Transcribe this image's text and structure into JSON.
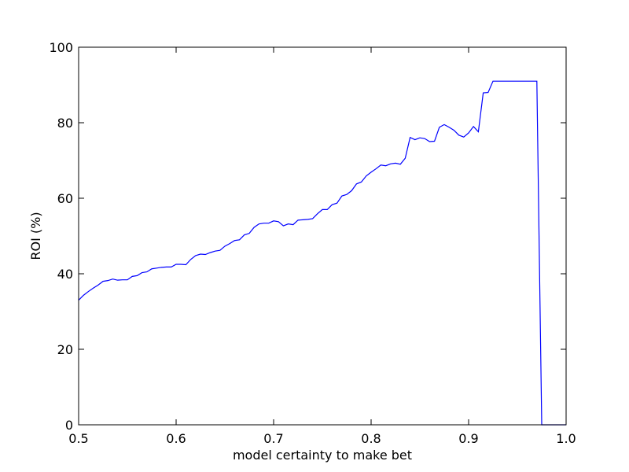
{
  "chart_data": {
    "type": "line",
    "title": "",
    "xlabel": "model certainty to make bet",
    "ylabel": "ROI (%)",
    "xlim": [
      0.5,
      1.0
    ],
    "ylim": [
      0,
      100
    ],
    "xticks": [
      0.5,
      0.6,
      0.7,
      0.8,
      0.9,
      1.0
    ],
    "xtick_labels": [
      "0.5",
      "0.6",
      "0.7",
      "0.8",
      "0.9",
      "1.0"
    ],
    "yticks": [
      0,
      20,
      40,
      60,
      80,
      100
    ],
    "ytick_labels": [
      "0",
      "20",
      "40",
      "60",
      "80",
      "100"
    ],
    "grid": false,
    "legend": "none",
    "series": [
      {
        "color": "#0000ff",
        "x": [
          0.5,
          0.505,
          0.51,
          0.515,
          0.52,
          0.525,
          0.53,
          0.535,
          0.54,
          0.545,
          0.55,
          0.555,
          0.56,
          0.565,
          0.57,
          0.575,
          0.58,
          0.585,
          0.59,
          0.595,
          0.6,
          0.605,
          0.61,
          0.615,
          0.62,
          0.625,
          0.63,
          0.635,
          0.64,
          0.645,
          0.65,
          0.655,
          0.66,
          0.665,
          0.67,
          0.675,
          0.68,
          0.685,
          0.69,
          0.695,
          0.7,
          0.705,
          0.71,
          0.715,
          0.72,
          0.725,
          0.73,
          0.735,
          0.74,
          0.745,
          0.75,
          0.755,
          0.76,
          0.765,
          0.77,
          0.775,
          0.78,
          0.785,
          0.79,
          0.795,
          0.8,
          0.805,
          0.81,
          0.815,
          0.82,
          0.825,
          0.83,
          0.835,
          0.84,
          0.845,
          0.85,
          0.855,
          0.86,
          0.865,
          0.87,
          0.875,
          0.88,
          0.885,
          0.89,
          0.895,
          0.9,
          0.905,
          0.91,
          0.915,
          0.92,
          0.925,
          0.93,
          0.935,
          0.94,
          0.97,
          0.975,
          1.0
        ],
        "y": [
          33.0,
          34.3,
          35.3,
          36.2,
          37.0,
          38.0,
          38.2,
          38.6,
          38.3,
          38.4,
          38.4,
          39.3,
          39.5,
          40.3,
          40.5,
          41.3,
          41.5,
          41.7,
          41.8,
          41.8,
          42.5,
          42.5,
          42.4,
          43.8,
          44.8,
          45.2,
          45.1,
          45.6,
          46.0,
          46.2,
          47.3,
          48.0,
          48.8,
          49.0,
          50.3,
          50.7,
          52.3,
          53.2,
          53.4,
          53.4,
          54.0,
          53.8,
          52.7,
          53.2,
          53.0,
          54.2,
          54.3,
          54.4,
          54.6,
          55.9,
          57.0,
          57.0,
          58.3,
          58.7,
          60.6,
          61.0,
          62.0,
          63.8,
          64.3,
          65.9,
          66.9,
          67.8,
          68.8,
          68.6,
          69.1,
          69.3,
          69.0,
          70.6,
          76.1,
          75.5,
          76.0,
          75.8,
          75.0,
          75.1,
          78.8,
          79.5,
          78.8,
          78.0,
          76.7,
          76.2,
          77.3,
          79.0,
          77.6,
          87.9,
          88.0,
          91.0,
          91.0,
          91.0,
          91.0,
          91.0,
          0.0,
          0.0
        ]
      }
    ]
  }
}
